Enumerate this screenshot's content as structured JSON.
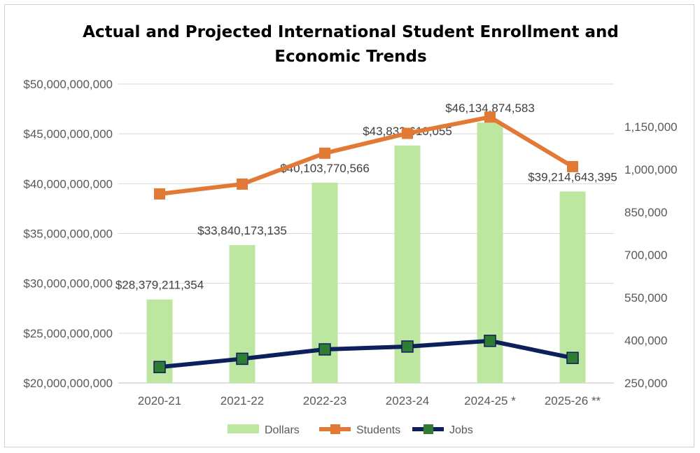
{
  "chart_data": {
    "type": "bar",
    "title_lines": [
      "Actual and Projected International Student Enrollment and",
      "Economic Trends"
    ],
    "categories": [
      "2020-21",
      "2021-22",
      "2022-23",
      "2023-24",
      "2024-25 *",
      "2025-26 **"
    ],
    "primary_axis": {
      "ylim": [
        20000000000,
        50000000000
      ],
      "ticks": [
        20000000000,
        25000000000,
        30000000000,
        35000000000,
        40000000000,
        45000000000,
        50000000000
      ],
      "tick_labels": [
        "$20,000,000,000",
        "$25,000,000,000",
        "$30,000,000,000",
        "$35,000,000,000",
        "$40,000,000,000",
        "$45,000,000,000",
        "$50,000,000,000"
      ]
    },
    "secondary_axis": {
      "ylim": [
        250000,
        1300000
      ],
      "ticks": [
        250000,
        400000,
        550000,
        700000,
        850000,
        1000000,
        1150000
      ],
      "tick_labels": [
        "250,000",
        "400,000",
        "550,000",
        "700,000",
        "850,000",
        "1,000,000",
        "1,150,000"
      ]
    },
    "series": [
      {
        "name": "Dollars",
        "kind": "bar",
        "axis": "primary",
        "color": "#bde7a0",
        "values": [
          28379211354,
          33840173135,
          40103770566,
          43833610055,
          46134874583,
          39214643395
        ],
        "data_labels": [
          "$28,379,211,354",
          "$33,840,173,135",
          "$40,103,770,566",
          "$43,833,610,055",
          "$46,134,874,583",
          "$39,214,643,395"
        ]
      },
      {
        "name": "Students",
        "kind": "line",
        "axis": "secondary",
        "color": "#e27a35",
        "values": [
          914000,
          948500,
          1057000,
          1126700,
          1184000,
          1010000
        ]
      },
      {
        "name": "Jobs",
        "kind": "line",
        "axis": "secondary",
        "color": "#0d1f5c",
        "marker_color": "#2e7d32",
        "values": [
          306000,
          335000,
          368000,
          378000,
          398000,
          338000
        ]
      }
    ],
    "grid": true,
    "legend": "bottom"
  }
}
